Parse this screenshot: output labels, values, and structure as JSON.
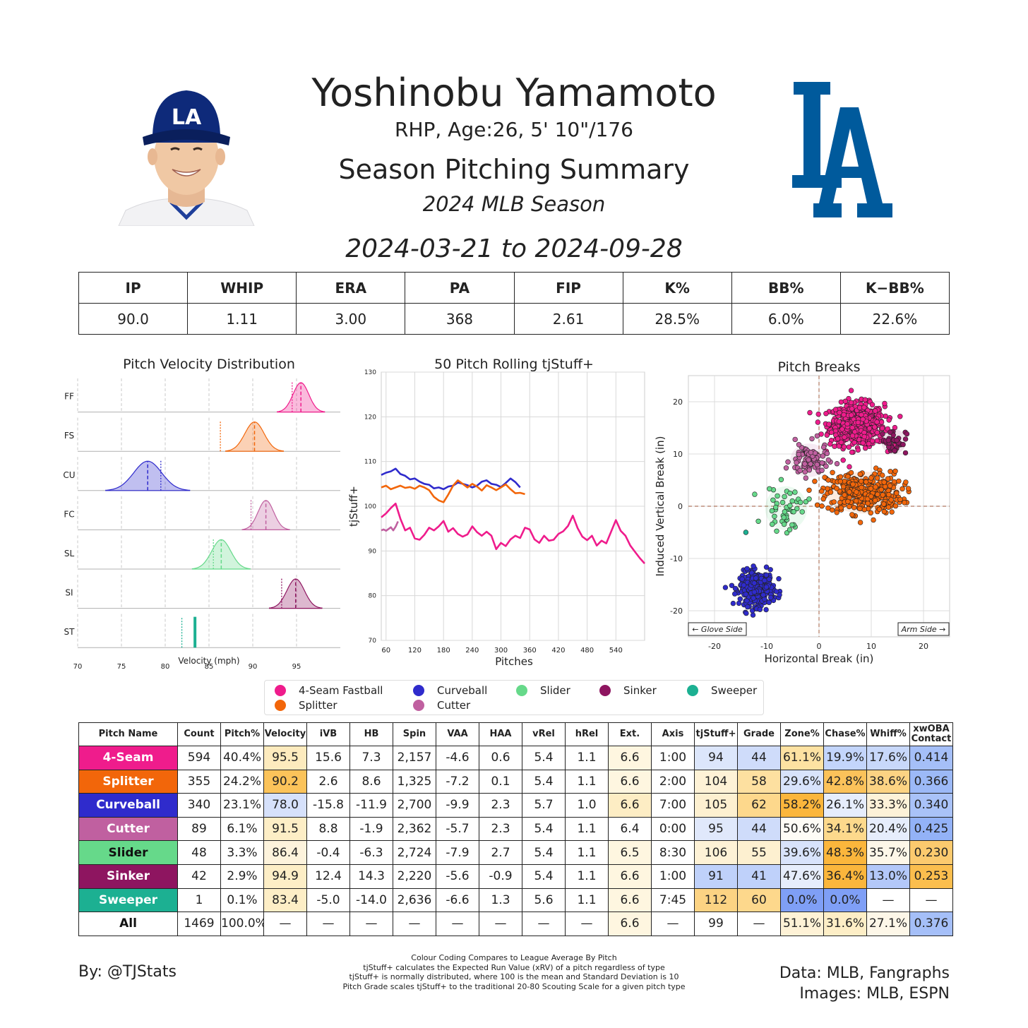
{
  "header": {
    "player_name": "Yoshinobu Yamamoto",
    "player_info": "RHP, Age:26, 5' 10\"/176",
    "summary_title": "Season Pitching Summary",
    "season": "2024 MLB Season",
    "date_range": "2024-03-21 to 2024-09-28"
  },
  "headshot": {
    "cap_letters": "LA",
    "cap_color": "#0e2a7a"
  },
  "logo": {
    "letters": "LA",
    "color": "#005a9c"
  },
  "season_stats": {
    "headers": [
      "IP",
      "WHIP",
      "ERA",
      "PA",
      "FIP",
      "K%",
      "BB%",
      "K−BB%"
    ],
    "values": [
      "90.0",
      "1.11",
      "3.00",
      "368",
      "2.61",
      "28.5%",
      "6.0%",
      "22.6%"
    ]
  },
  "pitch_colors": {
    "FF": "#ef1c8c",
    "FS": "#f2660a",
    "CU": "#2f2bcc",
    "FC": "#c060a0",
    "SL": "#66d98a",
    "SI": "#8e1560",
    "ST": "#1cb092"
  },
  "chart_data": [
    {
      "type": "area",
      "title": "Pitch Velocity Distribution",
      "xlabel": "Velocity (mph)",
      "xlim": [
        70,
        100
      ],
      "xticks": [
        70,
        75,
        80,
        85,
        90,
        95
      ],
      "series": [
        {
          "code": "FF",
          "mean": 95.5,
          "sd": 0.9,
          "league_mean": 94.5
        },
        {
          "code": "FS",
          "mean": 90.2,
          "sd": 1.1,
          "league_mean": 86.3
        },
        {
          "code": "CU",
          "mean": 78.0,
          "sd": 1.6,
          "league_mean": 79.5
        },
        {
          "code": "FC",
          "mean": 91.5,
          "sd": 0.9,
          "league_mean": 89.8
        },
        {
          "code": "SL",
          "mean": 86.4,
          "sd": 1.1,
          "league_mean": 85.5
        },
        {
          "code": "SI",
          "mean": 94.9,
          "sd": 1.0,
          "league_mean": 93.3
        },
        {
          "code": "ST",
          "mean": 83.4,
          "sd": 0,
          "league_mean": 81.9
        }
      ]
    },
    {
      "type": "line",
      "title": "50 Pitch Rolling tjStuff+",
      "xlabel": "Pitches",
      "ylabel": "tjStuff+",
      "xlim": [
        50,
        600
      ],
      "ylim": [
        70,
        130
      ],
      "xticks": [
        60,
        120,
        180,
        240,
        300,
        360,
        420,
        480,
        540
      ],
      "yticks": [
        70,
        80,
        90,
        100,
        110,
        120,
        130
      ],
      "series": [
        {
          "code": "CU",
          "x": [
            50,
            60,
            70,
            80,
            90,
            100,
            110,
            120,
            130,
            140,
            150,
            160,
            170,
            180,
            190,
            200,
            210,
            220,
            230,
            240,
            250,
            260,
            270,
            280,
            290,
            300,
            310,
            320,
            330,
            340
          ],
          "y": [
            107,
            107.5,
            107.8,
            108.4,
            107.2,
            106.8,
            106,
            106.2,
            105.5,
            105,
            104.8,
            104,
            104.2,
            103.8,
            104.4,
            104.6,
            105.3,
            105,
            104.7,
            104.2,
            104.6,
            105.5,
            105.8,
            105,
            104.8,
            104.3,
            105.2,
            106.2,
            105.4,
            104.2
          ]
        },
        {
          "code": "FS",
          "x": [
            50,
            60,
            70,
            80,
            90,
            100,
            110,
            120,
            130,
            140,
            150,
            160,
            170,
            180,
            190,
            200,
            210,
            220,
            230,
            240,
            250,
            260,
            270,
            280,
            290,
            300,
            310,
            320,
            330,
            340,
            350
          ],
          "y": [
            104.2,
            104.6,
            103.8,
            104.2,
            104.6,
            104.1,
            104.3,
            103.9,
            104.6,
            104.2,
            103.6,
            102.1,
            101.3,
            100.9,
            102.6,
            104.6,
            105.8,
            105,
            104.2,
            105,
            104.4,
            103.5,
            104.7,
            104.2,
            103.6,
            104.2,
            104.9,
            103.8,
            102.9,
            103,
            102.7
          ]
        },
        {
          "code": "FF",
          "x": [
            50,
            60,
            70,
            80,
            90,
            100,
            110,
            120,
            130,
            140,
            150,
            160,
            170,
            180,
            190,
            200,
            210,
            220,
            230,
            240,
            250,
            260,
            270,
            280,
            290,
            300,
            310,
            320,
            330,
            340,
            350,
            360,
            370,
            380,
            390,
            400,
            410,
            420,
            430,
            440,
            450,
            460,
            470,
            480,
            490,
            500,
            510,
            520,
            530,
            540,
            550,
            560,
            570,
            580,
            590,
            600
          ],
          "y": [
            97.5,
            98.4,
            99.6,
            100.6,
            97.2,
            94.6,
            95.2,
            92.8,
            92.5,
            93.6,
            95.2,
            94.6,
            95.5,
            96.7,
            94.3,
            95.1,
            93.8,
            93.2,
            93.7,
            95.5,
            94.2,
            93.4,
            94.3,
            93.4,
            90.4,
            91.8,
            91.1,
            92.6,
            93.4,
            92.9,
            95.2,
            94.8,
            92.6,
            91.8,
            93.4,
            92.3,
            92.5,
            93.8,
            94.4,
            95.6,
            97.9,
            95.1,
            93.2,
            92.4,
            93.4,
            91.2,
            92.3,
            91.7,
            94.3,
            96.9,
            94.5,
            93.4,
            91.2,
            89.8,
            88.4,
            87.2
          ]
        },
        {
          "code": "FC",
          "x": [
            50,
            55,
            60,
            65,
            70,
            75,
            80,
            85
          ],
          "y": [
            94.6,
            94.8,
            94.5,
            94.9,
            95.3,
            94.6,
            95.4,
            96.6
          ]
        }
      ]
    },
    {
      "type": "scatter",
      "title": "Pitch Breaks",
      "xlabel": "Horizontal Break (in)",
      "ylabel": "Induced Vertical Break (in)",
      "xlim": [
        -25,
        25
      ],
      "ylim": [
        -25,
        25
      ],
      "xticks": [
        -20,
        -10,
        0,
        10,
        20
      ],
      "yticks": [
        -20,
        -10,
        0,
        10,
        20
      ],
      "annotations": [
        "← Glove Side",
        "Arm Side →"
      ],
      "series": [
        {
          "code": "FF",
          "count": 594,
          "hb": 7.3,
          "ivb": 15.6,
          "sx": 2.6,
          "sy": 2.0
        },
        {
          "code": "FS",
          "count": 355,
          "hb": 8.6,
          "ivb": 2.6,
          "sx": 3.6,
          "sy": 2.0
        },
        {
          "code": "CU",
          "count": 340,
          "hb": -11.9,
          "ivb": -15.8,
          "sx": 1.6,
          "sy": 1.6
        },
        {
          "code": "FC",
          "count": 89,
          "hb": -1.9,
          "ivb": 8.8,
          "sx": 1.8,
          "sy": 1.6
        },
        {
          "code": "SL",
          "count": 48,
          "hb": -6.3,
          "ivb": -0.4,
          "sx": 2.0,
          "sy": 2.1
        },
        {
          "code": "SI",
          "count": 42,
          "hb": 14.3,
          "ivb": 12.4,
          "sx": 1.2,
          "sy": 1.2
        },
        {
          "code": "ST",
          "count": 1,
          "hb": -14.0,
          "ivb": -5.0,
          "sx": 0,
          "sy": 0
        }
      ]
    }
  ],
  "legend": [
    {
      "code": "FF",
      "label": "4-Seam Fastball"
    },
    {
      "code": "FS",
      "label": "Splitter"
    },
    {
      "code": "CU",
      "label": "Curveball"
    },
    {
      "code": "FC",
      "label": "Cutter"
    },
    {
      "code": "SL",
      "label": "Slider"
    },
    {
      "code": "SI",
      "label": "Sinker"
    },
    {
      "code": "ST",
      "label": "Sweeper"
    }
  ],
  "pitch_table": {
    "headers": [
      "Pitch Name",
      "Count",
      "Pitch%",
      "Velocity",
      "iVB",
      "HB",
      "Spin",
      "VAA",
      "HAA",
      "vRel",
      "hRel",
      "Ext.",
      "Axis",
      "tjStuff+",
      "Grade",
      "Zone%",
      "Chase%",
      "Whiff%",
      "xwOBA Contact"
    ],
    "rows": [
      {
        "name": "4-Seam",
        "code": "FF",
        "text": "#ffffff",
        "cells": [
          "594",
          "40.4%",
          "95.5",
          "15.6",
          "7.3",
          "2,157",
          "-4.6",
          "0.6",
          "5.4",
          "1.1",
          "6.6",
          "1:00",
          "94",
          "44",
          "61.1%",
          "19.9%",
          "17.6%",
          "0.414"
        ],
        "shades": [
          null,
          null,
          "#fdebbe",
          null,
          null,
          null,
          null,
          null,
          null,
          null,
          "#fef6e0",
          null,
          "#dce6fb",
          "#cfdcfa",
          "#fde2a2",
          "#c3d5fb",
          "#c8d8fa",
          "#a5bff8"
        ]
      },
      {
        "name": "Splitter",
        "code": "FS",
        "text": "#ffffff",
        "cells": [
          "355",
          "24.2%",
          "90.2",
          "2.6",
          "8.6",
          "1,325",
          "-7.2",
          "0.1",
          "5.4",
          "1.1",
          "6.6",
          "2:00",
          "104",
          "58",
          "29.6%",
          "42.8%",
          "38.6%",
          "0.366"
        ],
        "shades": [
          null,
          null,
          "#fbc35a",
          null,
          null,
          null,
          null,
          null,
          null,
          null,
          "#fef6e0",
          null,
          "#fef2d6",
          "#fde0a0",
          "#d8e3fb",
          "#fbc25a",
          "#fcd383",
          "#9cb9f7"
        ]
      },
      {
        "name": "Curveball",
        "code": "CU",
        "text": "#ffffff",
        "cells": [
          "340",
          "23.1%",
          "78.0",
          "-15.8",
          "-11.9",
          "2,700",
          "-9.9",
          "2.3",
          "5.7",
          "1.0",
          "6.6",
          "7:00",
          "105",
          "62",
          "58.2%",
          "26.1%",
          "33.3%",
          "0.340"
        ],
        "shades": [
          null,
          null,
          "#d6e1fb",
          null,
          null,
          null,
          null,
          null,
          null,
          null,
          "#fdedc4",
          null,
          "#fdf0d0",
          "#fdd88c",
          "#fbb63c",
          "#e6edfc",
          "#fdf2d8",
          "#a9c2f8"
        ]
      },
      {
        "name": "Cutter",
        "code": "FC",
        "text": "#ffffff",
        "cells": [
          "89",
          "6.1%",
          "91.5",
          "8.8",
          "-1.9",
          "2,362",
          "-5.7",
          "2.3",
          "5.4",
          "1.1",
          "6.4",
          "0:00",
          "95",
          "44",
          "50.6%",
          "34.1%",
          "20.4%",
          "0.425"
        ],
        "shades": [
          null,
          null,
          "#fdeec6",
          null,
          null,
          null,
          null,
          null,
          null,
          null,
          null,
          null,
          "#e0e8fb",
          "#cfdcfa",
          "#fefcf6",
          "#fdd98c",
          "#e6edfc",
          "#93b2f7"
        ]
      },
      {
        "name": "Slider",
        "code": "SL",
        "text": "#111111",
        "cells": [
          "48",
          "3.3%",
          "86.4",
          "-0.4",
          "-6.3",
          "2,724",
          "-7.9",
          "2.7",
          "5.4",
          "1.1",
          "6.5",
          "8:30",
          "106",
          "55",
          "39.6%",
          "48.3%",
          "35.7%",
          "0.230"
        ],
        "shades": [
          null,
          null,
          "#fdf3dc",
          null,
          null,
          null,
          null,
          null,
          null,
          null,
          "#fef6e0",
          null,
          "#fef2d6",
          "#fdf0d0",
          "#d8e3fb",
          "#fbb63c",
          "#fdf7e8",
          "#fcca6e"
        ]
      },
      {
        "name": "Sinker",
        "code": "SI",
        "text": "#ffffff",
        "cells": [
          "42",
          "2.9%",
          "94.9",
          "12.4",
          "14.3",
          "2,220",
          "-5.6",
          "-0.9",
          "5.4",
          "1.1",
          "6.6",
          "1:00",
          "91",
          "41",
          "47.6%",
          "36.4%",
          "13.0%",
          "0.253"
        ],
        "shades": [
          null,
          null,
          "#fdeec6",
          null,
          null,
          null,
          null,
          null,
          null,
          null,
          "#fef6e0",
          null,
          "#bfd1fa",
          "#bfd1fa",
          "#e6edfc",
          "#fbb63c",
          "#b3c8f9",
          "#fbbe4e"
        ]
      },
      {
        "name": "Sweeper",
        "code": "ST",
        "text": "#ffffff",
        "cells": [
          "1",
          "0.1%",
          "83.4",
          "-5.0",
          "-14.0",
          "2,636",
          "-6.6",
          "1.3",
          "5.6",
          "1.1",
          "6.6",
          "7:45",
          "112",
          "60",
          "0.0%",
          "0.0%",
          "—",
          "—"
        ],
        "shades": [
          null,
          null,
          "#fdeec6",
          null,
          null,
          null,
          null,
          null,
          null,
          null,
          "#fef6e0",
          null,
          "#fcd383",
          "#fdd88c",
          "#7f9ff6",
          "#7f9ff6",
          null,
          null
        ]
      },
      {
        "name": "All",
        "code": null,
        "text": "#111111",
        "cells": [
          "1469",
          "100.0%",
          "—",
          "—",
          "—",
          "—",
          "—",
          "—",
          "—",
          "—",
          "6.6",
          "—",
          "99",
          "—",
          "51.1%",
          "31.6%",
          "27.1%",
          "0.376"
        ],
        "shades": [
          null,
          null,
          null,
          null,
          null,
          null,
          null,
          null,
          null,
          null,
          "#fef6e0",
          null,
          null,
          null,
          "#fef2d6",
          "#fdeec6",
          "#fdf7e8",
          "#a5bff8"
        ]
      }
    ]
  },
  "footer": {
    "left": "By: @TJStats",
    "right_line1": "Data: MLB, Fangraphs",
    "right_line2": "Images: MLB, ESPN",
    "notes": [
      "Colour Coding Compares to League Average By Pitch",
      "tjStuff+ calculates the Expected Run Value (xRV) of a pitch regardless of type",
      "tjStuff+ is normally distributed, where 100 is the mean and Standard Deviation is 10",
      "Pitch Grade scales tjStuff+ to the traditional 20-80 Scouting Scale for a given pitch type"
    ]
  }
}
